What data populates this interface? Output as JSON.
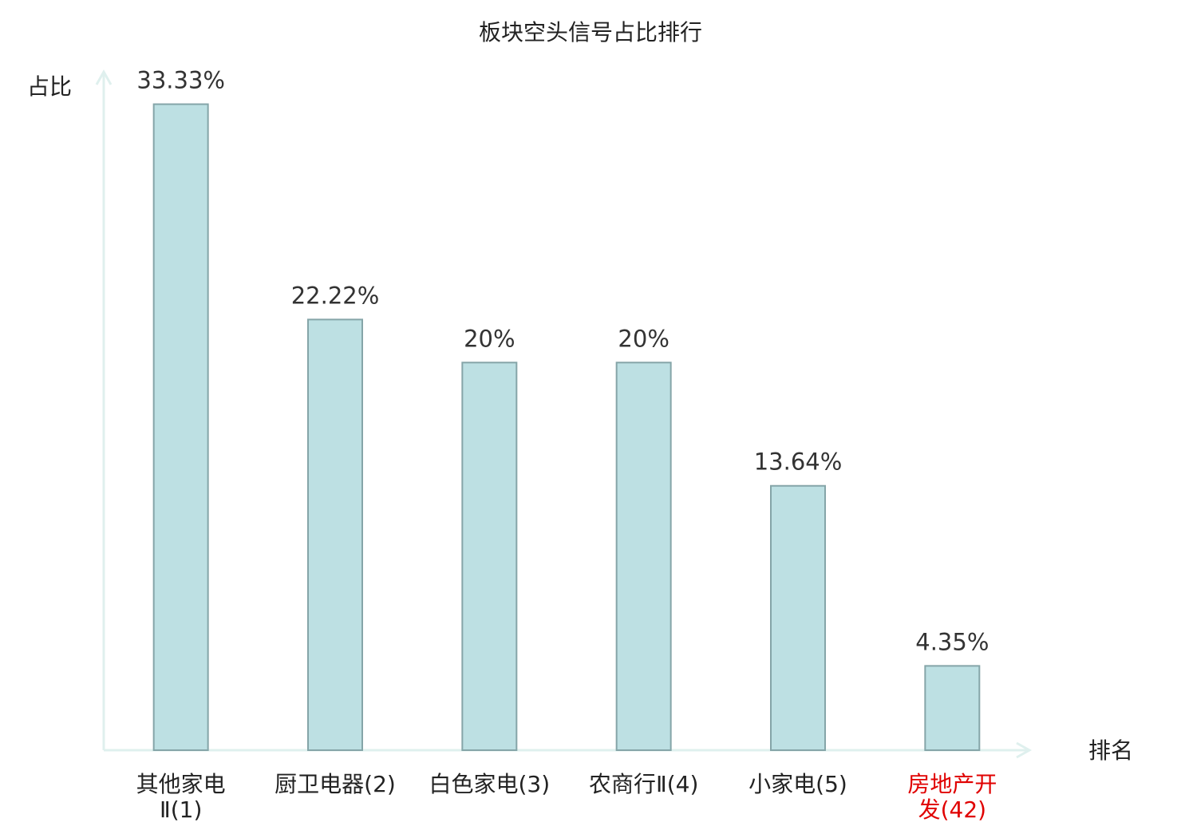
{
  "chart_data": {
    "type": "bar",
    "title": "板块空头信号占比排行",
    "y_label": "占比",
    "x_label": "排名",
    "categories": [
      "其他家电Ⅱ(1)",
      "厨卫电器(2)",
      "白色家电(3)",
      "农商行Ⅱ(4)",
      "小家电(5)",
      "房地产开发(42)"
    ],
    "values": [
      33.33,
      22.22,
      20,
      20,
      13.64,
      4.35
    ],
    "value_labels": [
      "33.33%",
      "22.22%",
      "20%",
      "20%",
      "13.64%",
      "4.35%"
    ],
    "color": "#bde0e3",
    "edge_color": "#85a5a8",
    "axis_color": "#dff0ee",
    "category_label_colors": [
      "#222222",
      "#222222",
      "#222222",
      "#222222",
      "#222222",
      "#e00000"
    ],
    "ylim": [
      0,
      35
    ]
  }
}
